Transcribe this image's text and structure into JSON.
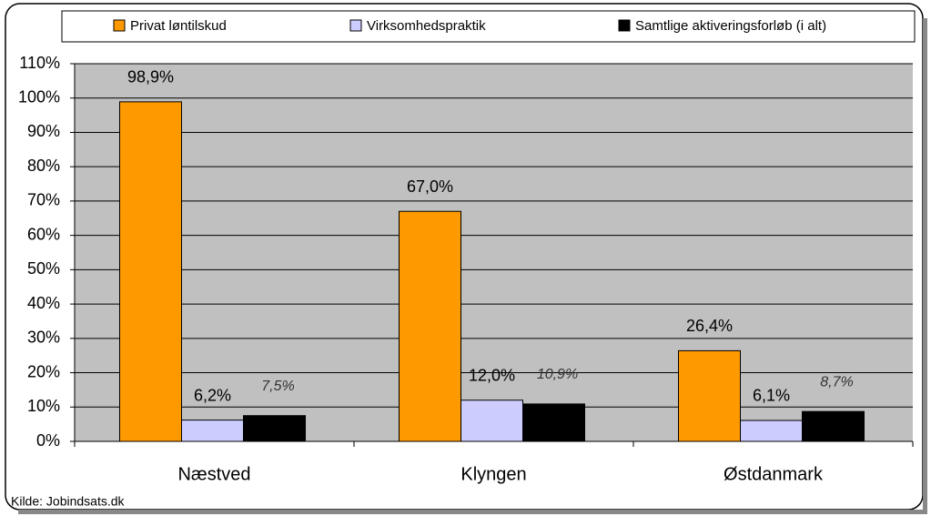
{
  "chart_data": {
    "type": "bar",
    "categories": [
      "Næstved",
      "Klyngen",
      "Østdanmark"
    ],
    "series": [
      {
        "name": "Privat løntilskud",
        "color": "#ff9900",
        "values": [
          98.9,
          67.0,
          26.4
        ],
        "value_labels": [
          "98,9%",
          "67,0%",
          "26,4%"
        ]
      },
      {
        "name": "Virksomhedspraktik",
        "color": "#ccccff",
        "values": [
          6.2,
          12.0,
          6.1
        ],
        "value_labels": [
          "6,2%",
          "12,0%",
          "6,1%"
        ]
      },
      {
        "name": "Samtlige aktiveringsforløb (i alt)",
        "color": "#000000",
        "values": [
          7.5,
          10.9,
          8.7
        ],
        "value_labels": [
          "7,5%",
          "10,9%",
          "8,7%"
        ]
      }
    ],
    "ylim": [
      0,
      110
    ],
    "yticks": [
      {
        "value": 0,
        "label": "0%"
      },
      {
        "value": 10,
        "label": "10%"
      },
      {
        "value": 20,
        "label": "20%"
      },
      {
        "value": 30,
        "label": "30%"
      },
      {
        "value": 40,
        "label": "40%"
      },
      {
        "value": 50,
        "label": "50%"
      },
      {
        "value": 60,
        "label": "60%"
      },
      {
        "value": 70,
        "label": "70%"
      },
      {
        "value": 80,
        "label": "80%"
      },
      {
        "value": 90,
        "label": "90%"
      },
      {
        "value": 100,
        "label": "100%"
      },
      {
        "value": 110,
        "label": "110%"
      }
    ],
    "grid": true,
    "legend": "top",
    "source": "Kilde: Jobindsats.dk"
  }
}
